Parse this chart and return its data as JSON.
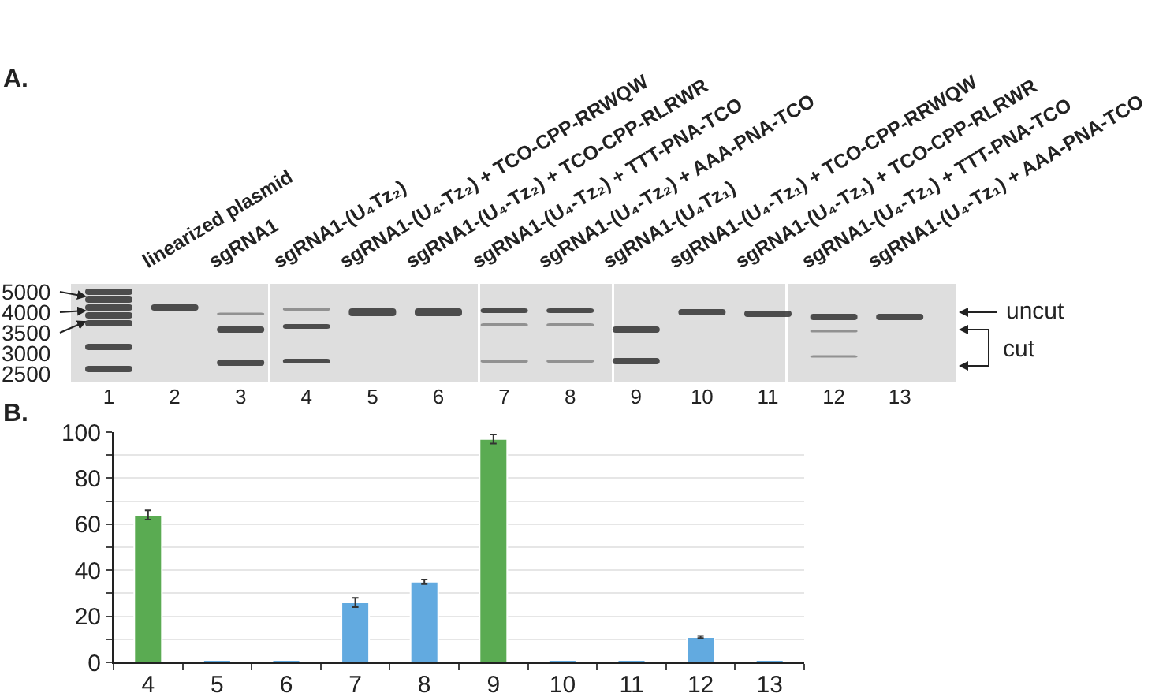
{
  "chart_data": {
    "type": "bar",
    "categories": [
      "4",
      "5",
      "6",
      "7",
      "8",
      "9",
      "10",
      "11",
      "12",
      "13"
    ],
    "values": [
      64,
      1,
      1,
      26,
      35,
      97,
      1,
      1,
      11,
      1
    ],
    "colors": [
      "#5aab52",
      "#62aae0",
      "#62aae0",
      "#62aae0",
      "#62aae0",
      "#5aab52",
      "#62aae0",
      "#62aae0",
      "#62aae0",
      "#62aae0"
    ],
    "errors": [
      2,
      null,
      null,
      2,
      1,
      2,
      null,
      null,
      0.5,
      null
    ],
    "ylim": [
      0,
      100
    ],
    "yticks": [
      0,
      {
        "value": 10,
        "label": null
      },
      20,
      {
        "value": 30,
        "label": null
      },
      40,
      {
        "value": 50,
        "label": null
      },
      60,
      {
        "value": 70,
        "label": null
      },
      80,
      {
        "value": 90,
        "label": null
      },
      100
    ],
    "grid": "y",
    "annotations": [
      "A.",
      "B.",
      "linearized plasmid",
      "sgRNA1",
      "sgRNA1-(U₄Tz₂)",
      "sgRNA1-(U₄-Tz₂) + TCO-CPP-RRWQW",
      "sgRNA1-(U₄-Tz₂) + TCO-CPP-RLRWR",
      "sgRNA1-(U₄-Tz₂) + TTT-PNA-TCO",
      "sgRNA1-(U₄-Tz₂) + AAA-PNA-TCO",
      "sgRNA1-(U₄Tz₁)",
      "sgRNA1-(U₄-Tz₁) + TCO-CPP-RRWQW",
      "sgRNA1-(U₄-Tz₁) + TCO-CPP-RLRWR",
      "sgRNA1-(U₄-Tz₁) + TTT-PNA-TCO",
      "sgRNA1-(U₄-Tz₁) + AAA-PNA-TCO",
      "1",
      "2",
      "3",
      "4",
      "5",
      "6",
      "7",
      "8",
      "9",
      "10",
      "11",
      "12",
      "13",
      "5000",
      "4000",
      "3500",
      "3000",
      "2500",
      "uncut",
      "cut"
    ]
  }
}
